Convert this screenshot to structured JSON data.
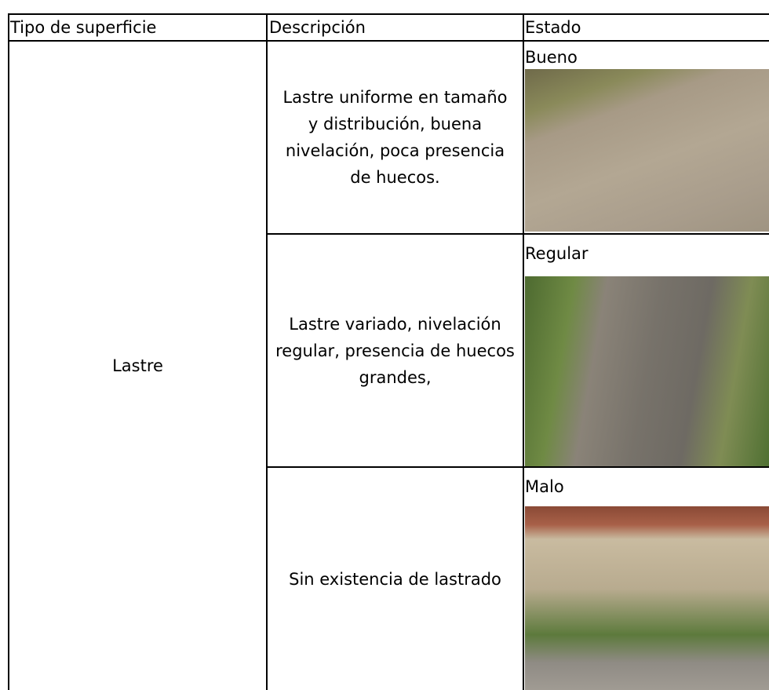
{
  "table": {
    "header": [
      "Tipo de superficie",
      "Descripción",
      "Estado"
    ],
    "surface": "Lastre",
    "rows": [
      {
        "description": "Lastre uniforme en tamaño y distribución, buena nivelación, poca presencia de huecos.",
        "state": "Bueno"
      },
      {
        "description": "Lastre variado, nivelación regular, presencia de huecos grandes,",
        "state": "Regular"
      },
      {
        "description": "Sin existencia de lastrado",
        "state": "Malo"
      }
    ]
  }
}
